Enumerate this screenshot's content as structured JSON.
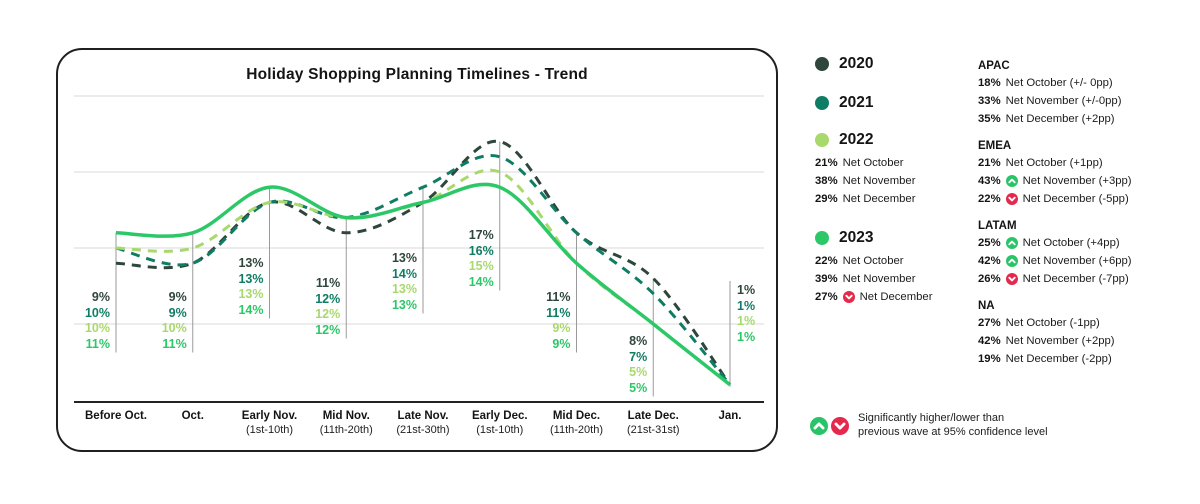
{
  "chart_data": {
    "type": "line",
    "title": "Holiday Shopping Planning Timelines - Trend",
    "unit": "%",
    "categories": [
      "Before Oct.",
      "Oct.",
      "Early Nov.",
      "Mid Nov.",
      "Late Nov.",
      "Early Dec.",
      "Mid Dec.",
      "Late Dec.",
      "Jan."
    ],
    "category_sublabels": [
      "",
      "",
      "(1st-10th)",
      "(11th-20th)",
      "(21st-30th)",
      "(1st-10th)",
      "(11th-20th)",
      "(21st-31st)",
      ""
    ],
    "series": [
      {
        "name": "2020",
        "color": "#2f463c",
        "style": "dashed",
        "values": [
          9,
          9,
          13,
          11,
          13,
          17,
          11,
          8,
          1
        ]
      },
      {
        "name": "2021",
        "color": "#0f7d64",
        "style": "dashed",
        "values": [
          10,
          9,
          13,
          12,
          14,
          16,
          11,
          7,
          1
        ]
      },
      {
        "name": "2022",
        "color": "#a8d96c",
        "style": "dashed",
        "values": [
          10,
          10,
          13,
          12,
          13,
          15,
          9,
          5,
          1
        ]
      },
      {
        "name": "2023",
        "color": "#2cc868",
        "style": "solid",
        "values": [
          11,
          11,
          14,
          12,
          13,
          14,
          9,
          5,
          1
        ]
      }
    ],
    "ylim": [
      0,
      22
    ],
    "grid_values": [
      5,
      10,
      15,
      20
    ],
    "grid_on": true,
    "legend_position": "right"
  },
  "legend": {
    "years": [
      {
        "label": "2020",
        "color": "#2f463c",
        "stats": []
      },
      {
        "label": "2021",
        "color": "#0f7d64",
        "stats": []
      },
      {
        "label": "2022",
        "color": "#a8d96c",
        "stats": [
          {
            "value": "21%",
            "indicator": null,
            "text": "Net October"
          },
          {
            "value": "38%",
            "indicator": null,
            "text": "Net November"
          },
          {
            "value": "29%",
            "indicator": null,
            "text": "Net December"
          }
        ]
      },
      {
        "label": "2023",
        "color": "#2cc868",
        "stats": [
          {
            "value": "22%",
            "indicator": null,
            "text": "Net October"
          },
          {
            "value": "39%",
            "indicator": null,
            "text": "Net November"
          },
          {
            "value": "27%",
            "indicator": "down",
            "text": "Net December"
          }
        ]
      }
    ],
    "regions": [
      {
        "name": "APAC",
        "rows": [
          {
            "value": "18%",
            "indicator": null,
            "text": "Net October (+/- 0pp)"
          },
          {
            "value": "33%",
            "indicator": null,
            "text": "Net November (+/-0pp)"
          },
          {
            "value": "35%",
            "indicator": null,
            "text": "Net December (+2pp)"
          }
        ]
      },
      {
        "name": "EMEA",
        "rows": [
          {
            "value": "21%",
            "indicator": null,
            "text": "Net October (+1pp)"
          },
          {
            "value": "43%",
            "indicator": "up",
            "text": "Net November (+3pp)"
          },
          {
            "value": "22%",
            "indicator": "down",
            "text": "Net December (-5pp)"
          }
        ]
      },
      {
        "name": "LATAM",
        "rows": [
          {
            "value": "25%",
            "indicator": "up",
            "text": "Net October (+4pp)"
          },
          {
            "value": "42%",
            "indicator": "up",
            "text": "Net November (+6pp)"
          },
          {
            "value": "26%",
            "indicator": "down",
            "text": "Net December (-7pp)"
          }
        ]
      },
      {
        "name": "NA",
        "rows": [
          {
            "value": "27%",
            "indicator": null,
            "text": "Net October (-1pp)"
          },
          {
            "value": "42%",
            "indicator": null,
            "text": "Net November (+2pp)"
          },
          {
            "value": "19%",
            "indicator": null,
            "text": "Net December (-2pp)"
          }
        ]
      }
    ]
  },
  "indicators": {
    "up_color": "#29c467",
    "down_color": "#e5284b"
  },
  "footer": {
    "line1": "Significantly higher/lower than",
    "line2": "previous wave at 95% confidence level"
  }
}
